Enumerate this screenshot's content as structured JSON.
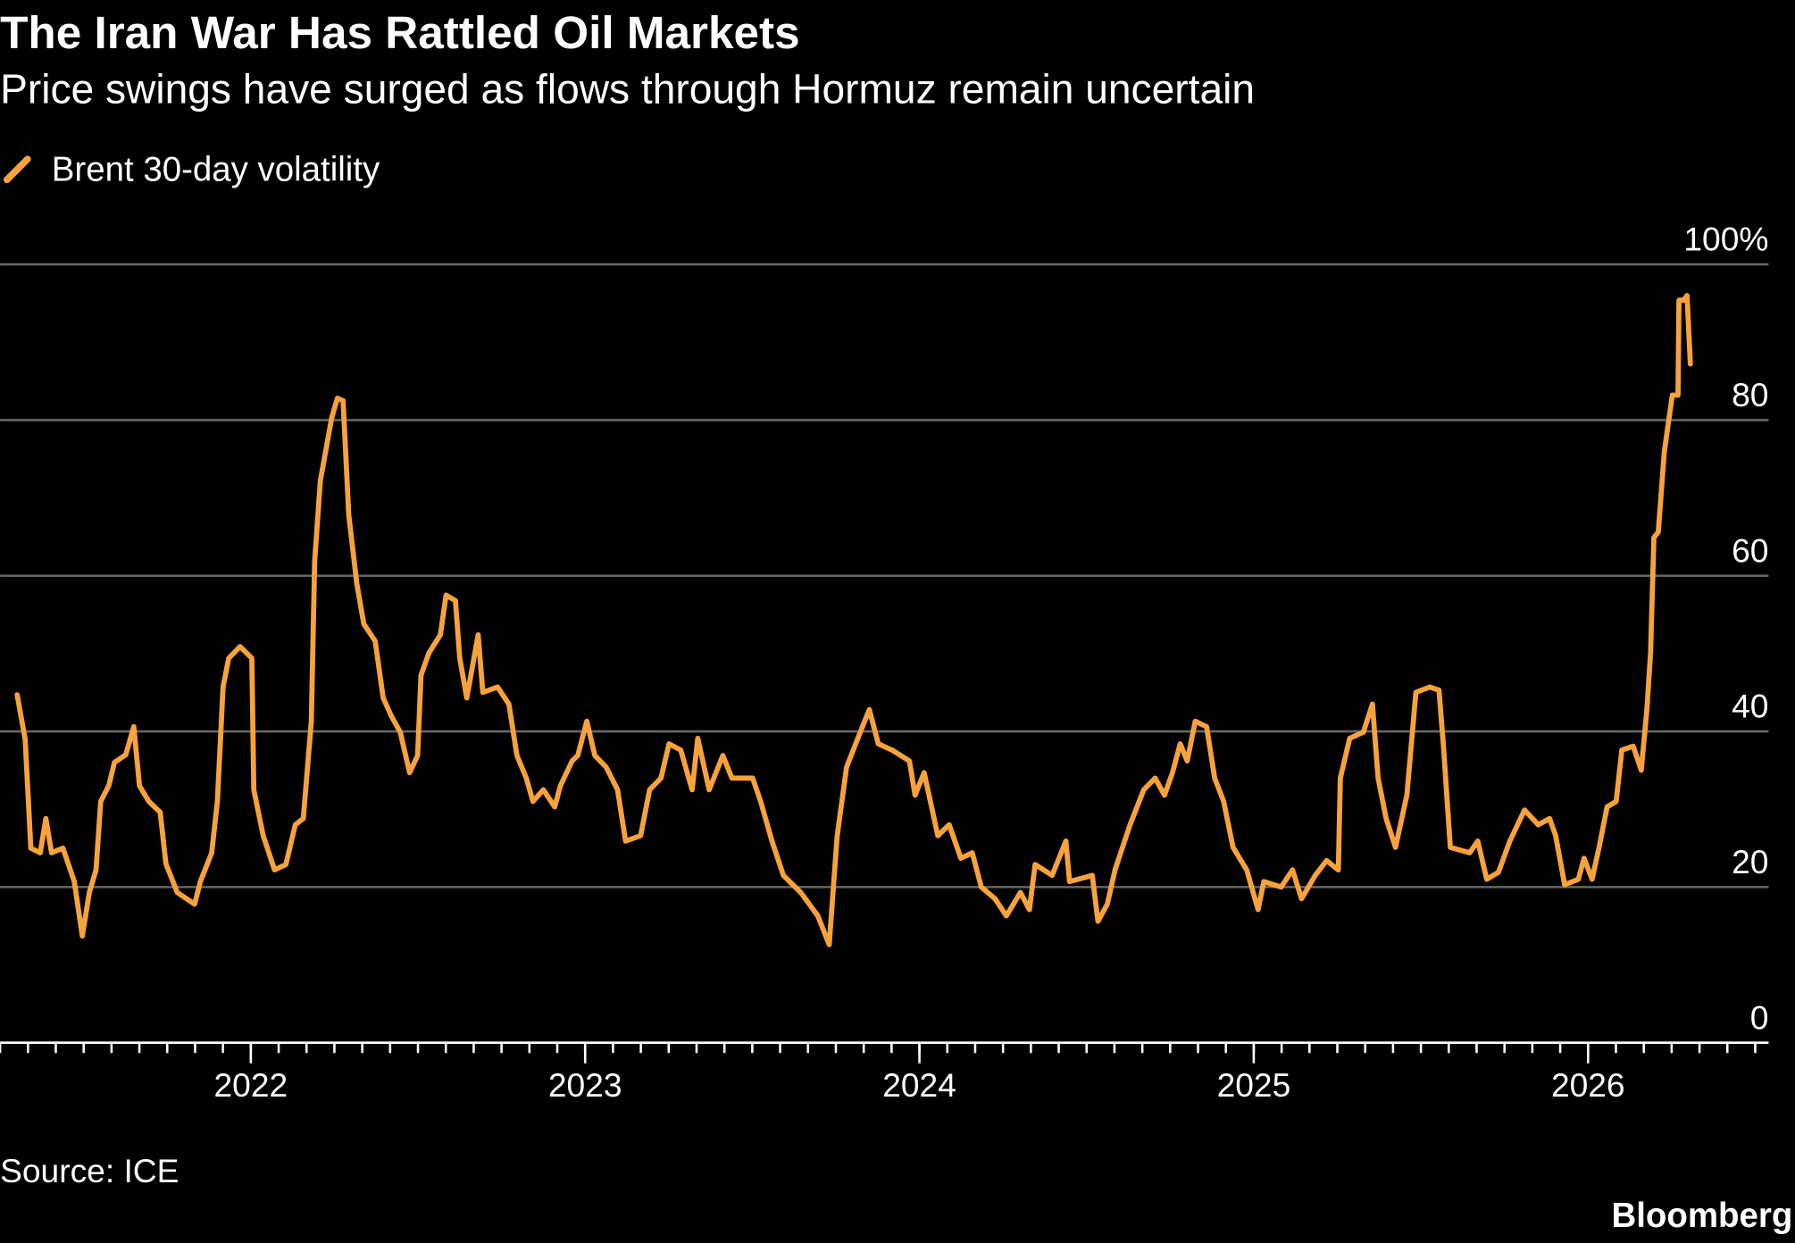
{
  "chart_data": {
    "type": "line",
    "title": "The Iran War Has Rattled Oil Markets",
    "subtitle": "Price swings have surged as flows through Hormuz remain uncertain",
    "source": "Source: ICE",
    "brand": "Bloomberg",
    "xlim": [
      2021.25,
      2026.54
    ],
    "xticks": [
      2022,
      2023,
      2024,
      2025,
      2026
    ],
    "ylim": [
      0,
      100
    ],
    "yticks": [
      0,
      20,
      40,
      60,
      80,
      {
        "value": 100,
        "label": "100%"
      }
    ],
    "grid": true,
    "legend": "top-left",
    "x": [
      2021.301,
      2021.325,
      2021.342,
      2021.37,
      2021.387,
      2021.404,
      2021.438,
      2021.472,
      2021.496,
      2021.517,
      2021.537,
      2021.551,
      2021.575,
      2021.592,
      2021.626,
      2021.65,
      2021.667,
      2021.695,
      2021.729,
      2021.746,
      2021.78,
      2021.832,
      2021.849,
      2021.883,
      2021.9,
      2021.917,
      2021.934,
      2021.968,
      2022.003,
      2022.009,
      2022.037,
      2022.071,
      2022.105,
      2022.133,
      2022.157,
      2022.181,
      2022.191,
      2022.208,
      2022.242,
      2022.259,
      2022.276,
      2022.293,
      2022.317,
      2022.338,
      2022.372,
      2022.396,
      2022.42,
      2022.447,
      2022.475,
      2022.499,
      2022.509,
      2022.533,
      2022.567,
      2022.584,
      2022.612,
      2022.625,
      2022.646,
      2022.68,
      2022.694,
      2022.738,
      2022.772,
      2022.796,
      2022.824,
      2022.844,
      2022.875,
      2022.909,
      2022.926,
      2022.961,
      2022.978,
      2023.005,
      2023.029,
      2023.063,
      2023.097,
      2023.121,
      2023.166,
      2023.193,
      2023.227,
      2023.251,
      2023.286,
      2023.32,
      2023.337,
      2023.371,
      2023.412,
      2023.439,
      2023.474,
      2023.501,
      2023.525,
      2023.559,
      2023.593,
      2023.645,
      2023.696,
      2023.73,
      2023.754,
      2023.782,
      2023.823,
      2023.85,
      2023.877,
      2023.918,
      2023.97,
      2023.987,
      2024.014,
      2024.055,
      2024.089,
      2024.124,
      2024.158,
      2024.185,
      2024.226,
      2024.26,
      2024.302,
      2024.329,
      2024.346,
      2024.397,
      2024.438,
      2024.449,
      2024.517,
      2024.534,
      2024.562,
      2024.585,
      2024.63,
      2024.671,
      2024.705,
      2024.733,
      2024.757,
      2024.78,
      2024.801,
      2024.825,
      2024.859,
      2024.883,
      2024.91,
      2024.938,
      2024.979,
      2025.013,
      2025.03,
      2025.082,
      2025.116,
      2025.143,
      2025.184,
      2025.218,
      2025.253,
      2025.259,
      2025.287,
      2025.328,
      2025.355,
      2025.372,
      2025.396,
      2025.424,
      2025.458,
      2025.485,
      2025.526,
      2025.554,
      2025.567,
      2025.588,
      2025.646,
      2025.67,
      2025.697,
      2025.732,
      2025.766,
      2025.81,
      2025.851,
      2025.885,
      2025.903,
      2025.93,
      2025.971,
      2025.988,
      2026.012,
      2026.033,
      2026.057,
      2026.084,
      2026.101,
      2026.135,
      2026.159,
      2026.176,
      2026.187,
      2026.197,
      2026.21,
      2026.228,
      2026.252,
      2026.269,
      2026.272,
      2026.286,
      2026.296,
      2026.306
    ],
    "series": [
      {
        "name": "Brent 30-day volatility",
        "color": "#f7a23b",
        "values": [
          44.7,
          39,
          25,
          24.4,
          28.8,
          24.4,
          25,
          20.7,
          13.7,
          19.3,
          22.2,
          31,
          33,
          36,
          37,
          40.6,
          33,
          31,
          29.6,
          23,
          19.3,
          17.8,
          20.7,
          24.4,
          31,
          45.7,
          49.4,
          50.9,
          49.4,
          32.5,
          26.6,
          22.2,
          22.9,
          28,
          28.8,
          41.3,
          61.9,
          72.2,
          80.3,
          82.8,
          82.5,
          67.8,
          59,
          53.8,
          51.6,
          44.3,
          42,
          39.9,
          34.7,
          36.9,
          47.2,
          50.1,
          52.4,
          57.5,
          56.8,
          49.4,
          44.3,
          52.4,
          45,
          45.7,
          43.5,
          36.9,
          34,
          31,
          32.5,
          30.3,
          33,
          36.2,
          36.9,
          41.3,
          36.9,
          35.4,
          32.5,
          25.9,
          26.6,
          32.5,
          34,
          38.4,
          37.6,
          32.5,
          39.1,
          32.5,
          36.9,
          34,
          34,
          34,
          31,
          25.9,
          21.5,
          19.3,
          16.3,
          12.6,
          26.6,
          35.4,
          39.9,
          42.8,
          38.4,
          37.6,
          36.2,
          31.8,
          34.7,
          26.6,
          28,
          23.7,
          24.4,
          20,
          18.5,
          16.3,
          19.3,
          17.1,
          22.9,
          21.5,
          25.9,
          20.7,
          21.5,
          15.6,
          17.8,
          22.2,
          28,
          32.5,
          34,
          31.8,
          34.7,
          38.4,
          36.2,
          41.3,
          40.6,
          34,
          31,
          25.1,
          22.2,
          17.1,
          20.7,
          20,
          22.2,
          18.5,
          21.5,
          23.4,
          22.2,
          34,
          39.1,
          39.9,
          43.5,
          34,
          28.8,
          25.1,
          31.8,
          45,
          45.7,
          45.3,
          38.4,
          25.1,
          24.4,
          25.9,
          21,
          21.9,
          25.9,
          29.9,
          28,
          28.8,
          26.6,
          20.3,
          21,
          23.7,
          21,
          25.1,
          30.3,
          31,
          37.6,
          38.1,
          35,
          42.8,
          50.1,
          64.9,
          65.6,
          75.9,
          83.2,
          83.2,
          95.4,
          95.4,
          96,
          87.2
        ]
      }
    ]
  }
}
